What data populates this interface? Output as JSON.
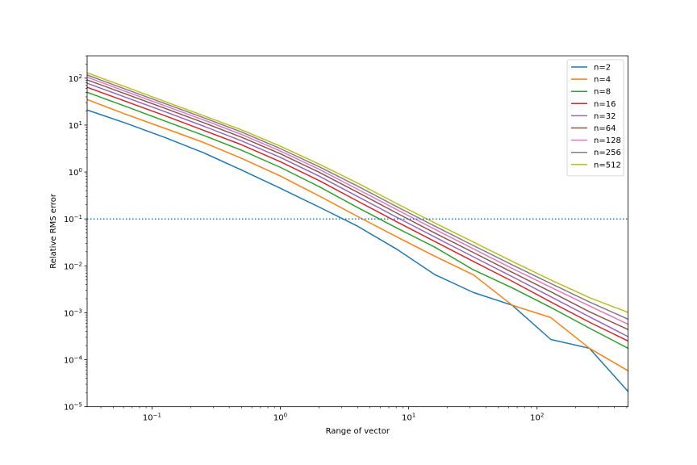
{
  "chart_data": {
    "type": "line",
    "title": "",
    "xlabel": "Range of vector",
    "ylabel": "Relative RMS error",
    "xscale": "log",
    "yscale": "log",
    "xlim": [
      0.03125,
      512
    ],
    "ylim": [
      1e-05,
      300
    ],
    "grid": false,
    "legend": "top-right",
    "x": [
      0.03125,
      0.0625,
      0.125,
      0.25,
      0.5,
      1,
      2,
      4,
      8,
      16,
      32,
      64,
      128,
      256,
      512
    ],
    "x_ticks": [
      {
        "value": 0.1,
        "label": "10",
        "exp": "−1"
      },
      {
        "value": 1,
        "label": "10",
        "exp": "0"
      },
      {
        "value": 10,
        "label": "10",
        "exp": "1"
      },
      {
        "value": 100,
        "label": "10",
        "exp": "2"
      }
    ],
    "y_ticks": [
      {
        "value": 1e-05,
        "label": "10",
        "exp": "−5"
      },
      {
        "value": 0.0001,
        "label": "10",
        "exp": "−4"
      },
      {
        "value": 0.001,
        "label": "10",
        "exp": "−3"
      },
      {
        "value": 0.01,
        "label": "10",
        "exp": "−2"
      },
      {
        "value": 0.1,
        "label": "10",
        "exp": "−1"
      },
      {
        "value": 1,
        "label": "10",
        "exp": "0"
      },
      {
        "value": 10,
        "label": "10",
        "exp": "1"
      },
      {
        "value": 100,
        "label": "10",
        "exp": "2"
      }
    ],
    "hline": {
      "y": 0.1,
      "color": "#1f77b4",
      "style": "dotted"
    },
    "series": [
      {
        "name": "n=2",
        "color": "#1f77b4",
        "values": [
          21,
          11,
          5.5,
          2.6,
          1.1,
          0.45,
          0.18,
          0.07,
          0.023,
          0.0065,
          0.0027,
          0.00145,
          0.00027,
          0.000175,
          2.1e-05
        ]
      },
      {
        "name": "n=4",
        "color": "#ff7f0e",
        "values": [
          35,
          17,
          8.6,
          4.3,
          1.95,
          0.82,
          0.31,
          0.113,
          0.042,
          0.016,
          0.0064,
          0.00145,
          0.00079,
          0.000175,
          5.8e-05
        ]
      },
      {
        "name": "n=8",
        "color": "#2ca02c",
        "values": [
          50,
          25,
          12.3,
          6.1,
          2.9,
          1.26,
          0.49,
          0.175,
          0.065,
          0.025,
          0.0082,
          0.0034,
          0.0013,
          0.00047,
          0.000175
        ]
      },
      {
        "name": "n=16",
        "color": "#d62728",
        "values": [
          64,
          32,
          16,
          7.8,
          3.8,
          1.66,
          0.66,
          0.24,
          0.088,
          0.033,
          0.0124,
          0.0047,
          0.0017,
          0.00063,
          0.00025
        ]
      },
      {
        "name": "n=32",
        "color": "#9467bd",
        "values": [
          78,
          39,
          19.5,
          9.6,
          4.6,
          2.05,
          0.82,
          0.3,
          0.11,
          0.041,
          0.0155,
          0.0059,
          0.0022,
          0.00082,
          0.00031
        ]
      },
      {
        "name": "n=64",
        "color": "#8c564b",
        "values": [
          92,
          46,
          23,
          11.4,
          5.5,
          2.45,
          0.99,
          0.37,
          0.135,
          0.05,
          0.0192,
          0.0073,
          0.0028,
          0.00105,
          0.00044
        ]
      },
      {
        "name": "n=128",
        "color": "#e377c2",
        "values": [
          105,
          52,
          26,
          13,
          6.3,
          2.8,
          1.15,
          0.43,
          0.16,
          0.06,
          0.023,
          0.0088,
          0.0035,
          0.0014,
          0.00057
        ]
      },
      {
        "name": "n=256",
        "color": "#7f7f7f",
        "values": [
          117,
          58,
          29,
          14.5,
          7.1,
          3.15,
          1.3,
          0.5,
          0.185,
          0.07,
          0.027,
          0.0105,
          0.0042,
          0.0017,
          0.00073
        ]
      },
      {
        "name": "n=512",
        "color": "#bcbd22",
        "values": [
          130,
          65,
          32,
          16,
          7.9,
          3.55,
          1.48,
          0.58,
          0.215,
          0.082,
          0.032,
          0.0125,
          0.005,
          0.0021,
          0.00102
        ]
      }
    ]
  }
}
